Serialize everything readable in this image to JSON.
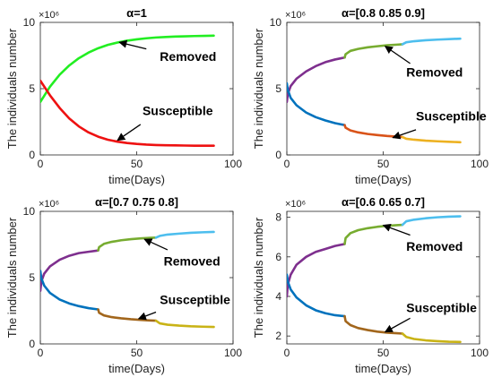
{
  "chart_data": [
    {
      "type": "line",
      "title": "α=1",
      "xlabel": "time(Days)",
      "ylabel": "The individuals number",
      "exponent": "×10⁶",
      "xlim": [
        0,
        100
      ],
      "ylim": [
        0,
        10
      ],
      "xticks": [
        "0",
        "50",
        "100"
      ],
      "yticks": [
        "0",
        "5",
        "10"
      ],
      "grid": false,
      "series": [
        {
          "name": "Removed",
          "segments": [
            {
              "color": "#22ee22",
              "x": [
                0,
                5,
                10,
                15,
                20,
                25,
                30,
                35,
                40,
                45,
                50,
                55,
                60,
                65,
                70,
                75,
                80,
                85,
                90
              ],
              "y": [
                4.0,
                5.15,
                6.05,
                6.75,
                7.3,
                7.72,
                8.05,
                8.3,
                8.48,
                8.62,
                8.72,
                8.8,
                8.86,
                8.9,
                8.93,
                8.95,
                8.97,
                8.98,
                9.0
              ]
            }
          ]
        },
        {
          "name": "Susceptible",
          "segments": [
            {
              "color": "#ee1111",
              "x": [
                0,
                5,
                10,
                15,
                20,
                25,
                30,
                35,
                40,
                45,
                50,
                55,
                60,
                65,
                70,
                75,
                80,
                85,
                90
              ],
              "y": [
                5.6,
                4.5,
                3.55,
                2.75,
                2.15,
                1.7,
                1.38,
                1.15,
                1.0,
                0.9,
                0.83,
                0.78,
                0.75,
                0.73,
                0.72,
                0.71,
                0.7,
                0.7,
                0.7
              ]
            }
          ]
        }
      ],
      "annotations": [
        {
          "text": "Removed",
          "x": 62,
          "y": 7.1,
          "arrow_from": [
            55,
            8.0
          ],
          "arrow_to": [
            41,
            8.5
          ]
        },
        {
          "text": "Susceptible",
          "x": 53,
          "y": 3.0,
          "arrow_from": [
            52,
            2.3
          ],
          "arrow_to": [
            40,
            1.1
          ]
        }
      ]
    },
    {
      "type": "line",
      "title": "α=[0.8 0.85 0.9]",
      "xlabel": "time(Days)",
      "ylabel": "The individuals number",
      "exponent": "×10⁶",
      "xlim": [
        0,
        100
      ],
      "ylim": [
        0,
        10
      ],
      "xticks": [
        "0",
        "50",
        "100"
      ],
      "yticks": [
        "0",
        "5",
        "10"
      ],
      "grid": false,
      "series": [
        {
          "name": "Removed",
          "segments": [
            {
              "color": "#7e2f8e",
              "x": [
                0,
                0.5,
                2,
                5,
                10,
                15,
                20,
                25,
                30
              ],
              "y": [
                4.0,
                4.6,
                5.2,
                5.75,
                6.3,
                6.7,
                7.0,
                7.2,
                7.35
              ]
            },
            {
              "color": "#77ac30",
              "x": [
                30,
                30.5,
                33,
                37,
                42,
                47,
                52,
                57,
                60
              ],
              "y": [
                7.35,
                7.6,
                7.85,
                8.0,
                8.12,
                8.2,
                8.27,
                8.32,
                8.35
              ]
            },
            {
              "color": "#4dbeee",
              "x": [
                60,
                62,
                66,
                72,
                78,
                84,
                90
              ],
              "y": [
                8.35,
                8.5,
                8.58,
                8.65,
                8.7,
                8.74,
                8.77
              ]
            }
          ]
        },
        {
          "name": "Susceptible",
          "segments": [
            {
              "color": "#0072bd",
              "x": [
                0,
                0.5,
                2,
                5,
                10,
                15,
                20,
                25,
                30
              ],
              "y": [
                5.4,
                4.9,
                4.3,
                3.75,
                3.2,
                2.85,
                2.6,
                2.4,
                2.25
              ]
            },
            {
              "color": "#d95319",
              "x": [
                30,
                30.5,
                33,
                37,
                42,
                47,
                52,
                57,
                60
              ],
              "y": [
                2.25,
                2.05,
                1.85,
                1.7,
                1.58,
                1.5,
                1.43,
                1.38,
                1.35
              ]
            },
            {
              "color": "#edb120",
              "x": [
                60,
                62,
                66,
                72,
                78,
                84,
                90
              ],
              "y": [
                1.35,
                1.22,
                1.15,
                1.08,
                1.03,
                0.99,
                0.96
              ]
            }
          ]
        }
      ],
      "annotations": [
        {
          "text": "Removed",
          "x": 62,
          "y": 5.9,
          "arrow_from": [
            64,
            6.9
          ],
          "arrow_to": [
            51,
            8.2
          ]
        },
        {
          "text": "Susceptible",
          "x": 67,
          "y": 2.6,
          "arrow_from": [
            67,
            1.9
          ],
          "arrow_to": [
            55,
            1.3
          ]
        }
      ]
    },
    {
      "type": "line",
      "title": "α=[0.7 0.75 0.8]",
      "xlabel": "time(Days)",
      "ylabel": "The individuals number",
      "exponent": "×10⁶",
      "xlim": [
        0,
        100
      ],
      "ylim": [
        0,
        10
      ],
      "xticks": [
        "0",
        "50",
        "100"
      ],
      "yticks": [
        "0",
        "5",
        "10"
      ],
      "grid": false,
      "series": [
        {
          "name": "Removed",
          "segments": [
            {
              "color": "#7e2f8e",
              "x": [
                0,
                0.5,
                2,
                5,
                10,
                15,
                20,
                25,
                30
              ],
              "y": [
                4.0,
                4.7,
                5.3,
                5.85,
                6.35,
                6.65,
                6.85,
                6.95,
                7.05
              ]
            },
            {
              "color": "#77ac30",
              "x": [
                30,
                30.5,
                33,
                37,
                42,
                47,
                52,
                57,
                60
              ],
              "y": [
                7.05,
                7.3,
                7.55,
                7.7,
                7.82,
                7.9,
                7.96,
                8.0,
                8.02
              ]
            },
            {
              "color": "#4dbeee",
              "x": [
                60,
                62,
                66,
                72,
                78,
                84,
                90
              ],
              "y": [
                8.02,
                8.15,
                8.25,
                8.32,
                8.38,
                8.42,
                8.45
              ]
            }
          ]
        },
        {
          "name": "Susceptible",
          "segments": [
            {
              "color": "#0072bd",
              "x": [
                0,
                0.5,
                2,
                5,
                10,
                15,
                20,
                25,
                30
              ],
              "y": [
                5.5,
                4.95,
                4.4,
                3.85,
                3.35,
                3.05,
                2.85,
                2.7,
                2.6
              ]
            },
            {
              "color": "#a2661c",
              "x": [
                30,
                30.5,
                33,
                37,
                42,
                47,
                52,
                57,
                60
              ],
              "y": [
                2.6,
                2.35,
                2.15,
                2.02,
                1.93,
                1.86,
                1.81,
                1.77,
                1.75
              ]
            },
            {
              "color": "#c9b316",
              "x": [
                60,
                62,
                66,
                72,
                78,
                84,
                90
              ],
              "y": [
                1.75,
                1.55,
                1.45,
                1.38,
                1.33,
                1.3,
                1.28
              ]
            }
          ]
        }
      ],
      "annotations": [
        {
          "text": "Removed",
          "x": 64,
          "y": 5.9,
          "arrow_from": [
            66,
            7.1
          ],
          "arrow_to": [
            54,
            7.9
          ]
        },
        {
          "text": "Susceptible",
          "x": 62,
          "y": 3.0,
          "arrow_from": [
            60,
            2.4
          ],
          "arrow_to": [
            51,
            1.9
          ]
        }
      ]
    },
    {
      "type": "line",
      "title": "α=[0.6 0.65 0.7]",
      "xlabel": "time(Days)",
      "ylabel": "The individuals number",
      "exponent": "×10⁶",
      "xlim": [
        0,
        100
      ],
      "ylim": [
        1.6,
        8.3
      ],
      "xticks": [
        "0",
        "50",
        "100"
      ],
      "yticks": [
        "2",
        "4",
        "6",
        "8"
      ],
      "grid": false,
      "series": [
        {
          "name": "Removed",
          "segments": [
            {
              "color": "#7e2f8e",
              "x": [
                0,
                0.5,
                2,
                5,
                10,
                15,
                20,
                25,
                30
              ],
              "y": [
                4.0,
                4.6,
                5.1,
                5.6,
                6.0,
                6.25,
                6.4,
                6.55,
                6.65
              ]
            },
            {
              "color": "#77ac30",
              "x": [
                30,
                30.5,
                33,
                37,
                42,
                47,
                52,
                57,
                60
              ],
              "y": [
                6.65,
                6.95,
                7.2,
                7.35,
                7.45,
                7.52,
                7.57,
                7.6,
                7.62
              ]
            },
            {
              "color": "#4dbeee",
              "x": [
                60,
                62,
                66,
                72,
                78,
                84,
                90
              ],
              "y": [
                7.62,
                7.8,
                7.88,
                7.95,
                8.0,
                8.03,
                8.05
              ]
            }
          ]
        },
        {
          "name": "Susceptible",
          "segments": [
            {
              "color": "#0072bd",
              "x": [
                0,
                0.5,
                2,
                5,
                10,
                15,
                20,
                25,
                30
              ],
              "y": [
                5.1,
                4.75,
                4.35,
                3.95,
                3.55,
                3.3,
                3.15,
                3.05,
                3.0
              ]
            },
            {
              "color": "#a2661c",
              "x": [
                30,
                30.5,
                33,
                37,
                42,
                47,
                52,
                57,
                60
              ],
              "y": [
                3.0,
                2.75,
                2.55,
                2.4,
                2.3,
                2.22,
                2.17,
                2.14,
                2.12
              ]
            },
            {
              "color": "#c9b316",
              "x": [
                60,
                62,
                66,
                72,
                78,
                84,
                90
              ],
              "y": [
                2.12,
                1.95,
                1.85,
                1.78,
                1.74,
                1.71,
                1.7
              ]
            }
          ]
        }
      ],
      "annotations": [
        {
          "text": "Removed",
          "x": 62,
          "y": 6.3,
          "arrow_from": [
            64,
            7.1
          ],
          "arrow_to": [
            50,
            7.6
          ]
        },
        {
          "text": "Susceptible",
          "x": 62,
          "y": 3.2,
          "arrow_from": [
            64,
            2.9
          ],
          "arrow_to": [
            51,
            2.2
          ]
        }
      ]
    }
  ]
}
